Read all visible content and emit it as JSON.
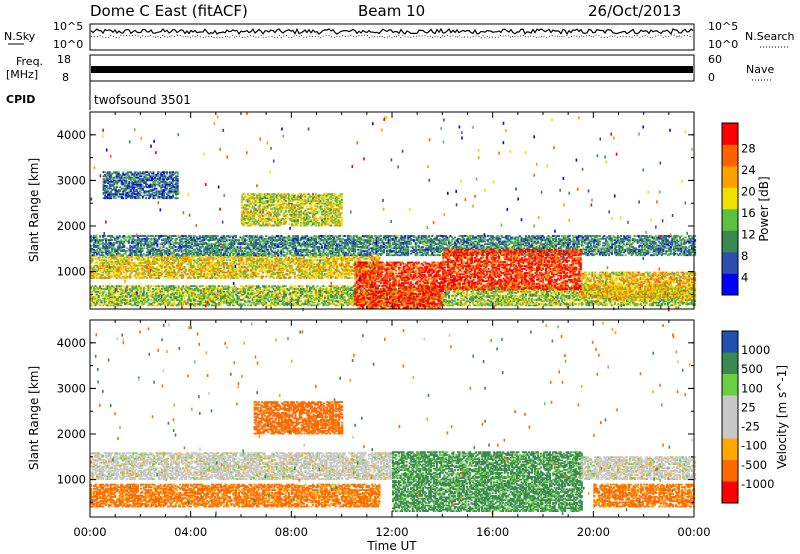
{
  "header": {
    "station": "Dome C East (fitACF)",
    "beam": "Beam 10",
    "date": "26/Oct/2013"
  },
  "strips": {
    "nsky": {
      "label": "N.Sky",
      "left_ticks": [
        "10^5",
        "10^0"
      ]
    },
    "freq": {
      "label_line1": "Freq.",
      "label_line2": "[MHz]",
      "left_ticks": [
        "18",
        "8"
      ]
    },
    "nsearch": {
      "label": "N.Search",
      "right_ticks": [
        "10^5",
        "10^0"
      ]
    },
    "nave": {
      "label": "Nave",
      "right_ticks": [
        "60",
        "0"
      ]
    },
    "cpid": {
      "label": "CPID",
      "value": "twofsound 3501"
    }
  },
  "colors": {
    "power": [
      "#0000ff",
      "#2d4fb0",
      "#3a8a50",
      "#5cc040",
      "#f0e000",
      "#ffa000",
      "#ff6000",
      "#ff0000"
    ],
    "velocity": [
      "#ff0000",
      "#ff6a00",
      "#ffa800",
      "#c8c8c8",
      "#c8c8c8",
      "#6ad040",
      "#3a8a50",
      "#2050b0"
    ]
  },
  "chart_data": [
    {
      "type": "heatmap",
      "panel": "power",
      "xlabel": "",
      "ylabel": "Slant Range [km]",
      "x_ticks": [
        "00:00",
        "04:00",
        "08:00",
        "12:00",
        "16:00",
        "20:00",
        "00:00"
      ],
      "xlim_hours": [
        0,
        24
      ],
      "ylim": [
        180,
        4500
      ],
      "y_ticks": [
        1000,
        2000,
        3000,
        4000
      ],
      "colorbar": {
        "label": "Power [dB]",
        "tick_labels": [
          "4",
          "8",
          "12",
          "16",
          "20",
          "24",
          "28"
        ],
        "range": [
          0,
          30
        ]
      },
      "echo_regions": [
        {
          "t0": 0.0,
          "t1": 24.0,
          "r0": 250,
          "r1": 700,
          "value": 14
        },
        {
          "t0": 0.0,
          "t1": 11.5,
          "r0": 850,
          "r1": 1350,
          "value": 18
        },
        {
          "t0": 0.0,
          "t1": 24.0,
          "r0": 1350,
          "r1": 1800,
          "value": 9
        },
        {
          "t0": 6.0,
          "t1": 10.0,
          "r0": 2000,
          "r1": 2700,
          "value": 16
        },
        {
          "t0": 0.5,
          "t1": 3.5,
          "r0": 2600,
          "r1": 3200,
          "value": 7
        },
        {
          "t0": 10.5,
          "t1": 14.0,
          "r0": 200,
          "r1": 1200,
          "value": 27
        },
        {
          "t0": 14.0,
          "t1": 19.5,
          "r0": 600,
          "r1": 1500,
          "value": 27
        },
        {
          "t0": 19.5,
          "t1": 24.0,
          "r0": 400,
          "r1": 1000,
          "value": 19
        }
      ]
    },
    {
      "type": "heatmap",
      "panel": "velocity",
      "xlabel": "Time UT",
      "ylabel": "Slant Range [km]",
      "x_ticks": [
        "00:00",
        "04:00",
        "08:00",
        "12:00",
        "16:00",
        "20:00",
        "00:00"
      ],
      "xlim_hours": [
        0,
        24
      ],
      "ylim": [
        180,
        4500
      ],
      "y_ticks": [
        1000,
        2000,
        3000,
        4000
      ],
      "colorbar": {
        "label": "Velocity [m s^-1]",
        "tick_labels": [
          "1000",
          "500",
          "100",
          "25",
          "-25",
          "-100",
          "-500",
          "-1000"
        ]
      },
      "echo_regions": [
        {
          "t0": 0.0,
          "t1": 11.5,
          "r0": 400,
          "r1": 900,
          "value": -150
        },
        {
          "t0": 0.0,
          "t1": 12.0,
          "r0": 1000,
          "r1": 1600,
          "value": 0
        },
        {
          "t0": 6.5,
          "t1": 10.0,
          "r0": 2000,
          "r1": 2700,
          "value": -300
        },
        {
          "t0": 12.0,
          "t1": 19.5,
          "r0": 300,
          "r1": 1600,
          "value": 150
        },
        {
          "t0": 19.5,
          "t1": 24.0,
          "r0": 1000,
          "r1": 1500,
          "value": 0
        },
        {
          "t0": 20.0,
          "t1": 24.0,
          "r0": 400,
          "r1": 900,
          "value": -150
        }
      ]
    }
  ]
}
